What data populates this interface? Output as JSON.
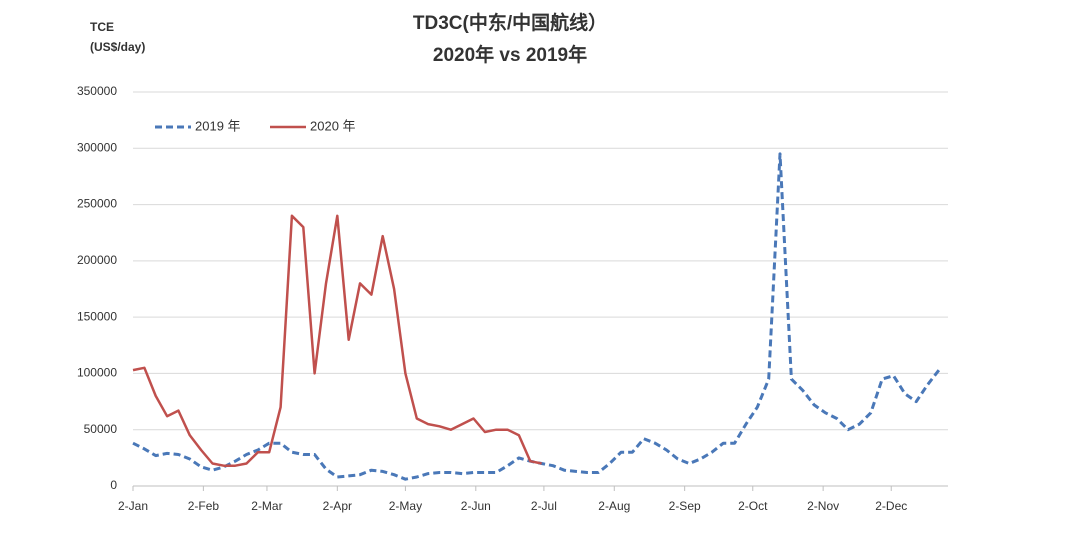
{
  "chart_data": {
    "type": "line",
    "title": "TD3C(中东/中国航线）",
    "subtitle": "2020年 vs 2019年",
    "ylabel": "TCE",
    "yunit": "(US$/day)",
    "x": [
      0,
      5,
      10,
      15,
      20,
      25,
      30,
      35,
      40,
      45,
      50,
      55,
      60,
      65,
      70,
      75,
      80,
      85,
      90,
      95,
      100,
      105,
      110,
      115,
      120,
      125,
      130,
      135,
      140,
      145,
      150,
      155,
      160,
      165,
      170,
      175,
      180,
      185,
      190,
      195,
      200,
      205,
      210,
      215,
      220,
      225,
      230,
      235,
      240,
      245,
      250,
      255,
      260,
      265,
      270,
      275,
      280,
      285,
      290,
      295,
      300,
      305,
      310,
      315,
      320,
      325,
      330,
      335,
      340,
      345,
      350,
      355
    ],
    "xlim": [
      0,
      359
    ],
    "xticks": [
      {
        "value": 0,
        "label": "2-Jan"
      },
      {
        "value": 31,
        "label": "2-Feb"
      },
      {
        "value": 59,
        "label": "2-Mar"
      },
      {
        "value": 90,
        "label": "2-Apr"
      },
      {
        "value": 120,
        "label": "2-May"
      },
      {
        "value": 151,
        "label": "2-Jun"
      },
      {
        "value": 181,
        "label": "2-Jul"
      },
      {
        "value": 212,
        "label": "2-Aug"
      },
      {
        "value": 243,
        "label": "2-Sep"
      },
      {
        "value": 273,
        "label": "2-Oct"
      },
      {
        "value": 304,
        "label": "2-Nov"
      },
      {
        "value": 334,
        "label": "2-Dec"
      }
    ],
    "ylim": [
      0,
      350000
    ],
    "yticks": [
      0,
      50000,
      100000,
      150000,
      200000,
      250000,
      300000,
      350000
    ],
    "grid": true,
    "legend": "upper left",
    "series": [
      {
        "name": "2019 年",
        "color": "#4a78b8",
        "dash": true,
        "values": [
          38000,
          33000,
          27000,
          29000,
          28000,
          24000,
          17000,
          14000,
          17000,
          22000,
          28000,
          32000,
          38000,
          38000,
          30000,
          28000,
          28000,
          15000,
          8000,
          9000,
          10000,
          14000,
          13000,
          10000,
          6000,
          8000,
          11000,
          12000,
          12000,
          11000,
          12000,
          12000,
          12000,
          18000,
          25000,
          22000,
          20000,
          18000,
          14000,
          13000,
          12000,
          12000,
          20000,
          30000,
          30000,
          42000,
          38000,
          32000,
          24000,
          20000,
          24000,
          30000,
          38000,
          38000,
          55000,
          70000,
          95000,
          295000,
          95000,
          85000,
          72000,
          65000,
          60000,
          50000,
          55000,
          65000,
          95000,
          98000,
          82000,
          75000,
          90000,
          103000
        ]
      },
      {
        "name": "2020 年",
        "color": "#c0504d",
        "dash": false,
        "values": [
          103000,
          105000,
          80000,
          62000,
          67000,
          45000,
          32000,
          20000,
          18000,
          18000,
          20000,
          30000,
          30000,
          70000,
          240000,
          230000,
          100000,
          180000,
          240000,
          130000,
          180000,
          170000,
          222000,
          175000,
          100000,
          60000,
          55000,
          53000,
          50000,
          55000,
          60000,
          48000,
          50000,
          50000,
          45000,
          22000,
          20000,
          null,
          null,
          null,
          null,
          null,
          null,
          null,
          null,
          null,
          null,
          null,
          null,
          null,
          null,
          null,
          null,
          null,
          null,
          null,
          null,
          null,
          null,
          null,
          null,
          null,
          null,
          null,
          null,
          null,
          null,
          null,
          null,
          null,
          null,
          null
        ]
      }
    ]
  }
}
